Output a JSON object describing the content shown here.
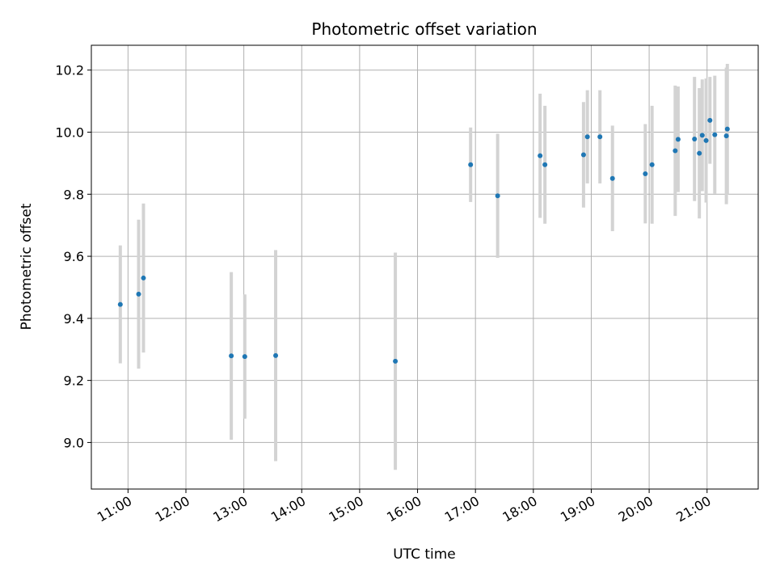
{
  "chart_data": {
    "type": "scatter",
    "title": "Photometric offset variation",
    "xlabel": "UTC time",
    "ylabel": "Photometric offset",
    "x_tick_labels": [
      "11:00",
      "12:00",
      "13:00",
      "14:00",
      "15:00",
      "16:00",
      "17:00",
      "18:00",
      "19:00",
      "20:00",
      "21:00"
    ],
    "y_tick_labels": [
      "9.0",
      "9.2",
      "9.4",
      "9.6",
      "9.8",
      "10.0",
      "10.2"
    ],
    "xlim": [
      "10:22",
      "21:53"
    ],
    "ylim": [
      8.85,
      10.28
    ],
    "grid": true,
    "point_color": "#1f77b4",
    "errorbar_color": "#d3d3d3",
    "points": [
      {
        "t": "10:52",
        "y": 9.445,
        "err": 0.19
      },
      {
        "t": "11:11",
        "y": 9.478,
        "err": 0.24
      },
      {
        "t": "11:16",
        "y": 9.53,
        "err": 0.24
      },
      {
        "t": "12:47",
        "y": 9.279,
        "err": 0.27
      },
      {
        "t": "13:01",
        "y": 9.277,
        "err": 0.2
      },
      {
        "t": "13:33",
        "y": 9.28,
        "err": 0.34
      },
      {
        "t": "15:37",
        "y": 9.262,
        "err": 0.35
      },
      {
        "t": "16:55",
        "y": 9.895,
        "err": 0.12
      },
      {
        "t": "17:23",
        "y": 9.795,
        "err": 0.2
      },
      {
        "t": "18:07",
        "y": 9.924,
        "err": 0.2
      },
      {
        "t": "18:12",
        "y": 9.895,
        "err": 0.19
      },
      {
        "t": "18:52",
        "y": 9.927,
        "err": 0.17
      },
      {
        "t": "18:56",
        "y": 9.985,
        "err": 0.15
      },
      {
        "t": "19:09",
        "y": 9.985,
        "err": 0.15
      },
      {
        "t": "19:22",
        "y": 9.851,
        "err": 0.17
      },
      {
        "t": "19:56",
        "y": 9.866,
        "err": 0.16
      },
      {
        "t": "20:03",
        "y": 9.895,
        "err": 0.19
      },
      {
        "t": "20:27",
        "y": 9.94,
        "err": 0.21
      },
      {
        "t": "20:30",
        "y": 9.977,
        "err": 0.17
      },
      {
        "t": "20:47",
        "y": 9.978,
        "err": 0.2
      },
      {
        "t": "20:52",
        "y": 9.932,
        "err": 0.21
      },
      {
        "t": "20:55",
        "y": 9.99,
        "err": 0.18
      },
      {
        "t": "20:59",
        "y": 9.973,
        "err": 0.2
      },
      {
        "t": "21:03",
        "y": 10.038,
        "err": 0.14
      },
      {
        "t": "21:08",
        "y": 9.992,
        "err": 0.19
      },
      {
        "t": "21:20",
        "y": 9.988,
        "err": 0.22
      },
      {
        "t": "21:21",
        "y": 10.01,
        "err": 0.21
      }
    ]
  }
}
